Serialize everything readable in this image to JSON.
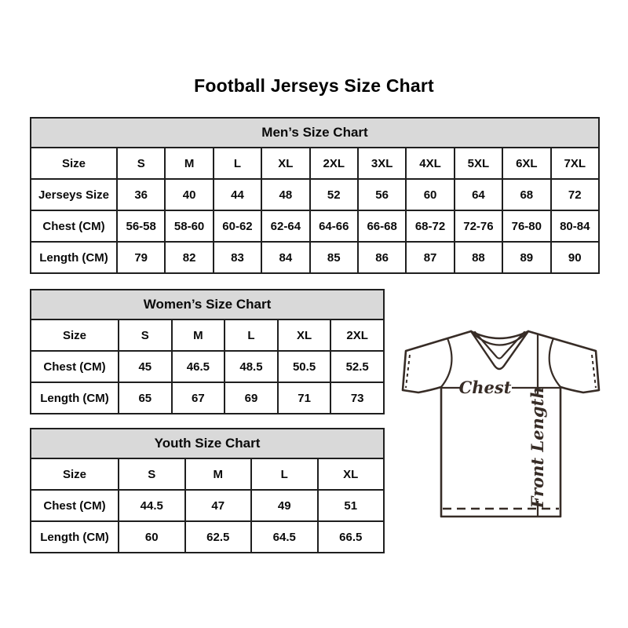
{
  "page_title": "Football Jerseys Size Chart",
  "colors": {
    "header_bg": "#d9d9d9",
    "border": "#1f1f1f",
    "text": "#0a0a0a",
    "diagram_stroke": "#372c26"
  },
  "diagram": {
    "chest_label": "Chest",
    "front_length_label": "Front Length"
  },
  "chart_data": [
    {
      "type": "table",
      "name": "men",
      "title": "Men’s Size Chart",
      "rows": [
        {
          "label": "Size",
          "header": true,
          "values": [
            "S",
            "M",
            "L",
            "XL",
            "2XL",
            "3XL",
            "4XL",
            "5XL",
            "6XL",
            "7XL"
          ]
        },
        {
          "label": "Jerseys Size",
          "values": [
            "36",
            "40",
            "44",
            "48",
            "52",
            "56",
            "60",
            "64",
            "68",
            "72"
          ]
        },
        {
          "label": "Chest (CM)",
          "values": [
            "56-58",
            "58-60",
            "60-62",
            "62-64",
            "64-66",
            "66-68",
            "68-72",
            "72-76",
            "76-80",
            "80-84"
          ]
        },
        {
          "label": "Length (CM)",
          "values": [
            "79",
            "82",
            "83",
            "84",
            "85",
            "86",
            "87",
            "88",
            "89",
            "90"
          ]
        }
      ]
    },
    {
      "type": "table",
      "name": "women",
      "title": "Women’s Size Chart",
      "rows": [
        {
          "label": "Size",
          "header": true,
          "values": [
            "S",
            "M",
            "L",
            "XL",
            "2XL"
          ]
        },
        {
          "label": "Chest (CM)",
          "values": [
            "45",
            "46.5",
            "48.5",
            "50.5",
            "52.5"
          ]
        },
        {
          "label": "Length (CM)",
          "values": [
            "65",
            "67",
            "69",
            "71",
            "73"
          ]
        }
      ]
    },
    {
      "type": "table",
      "name": "youth",
      "title": "Youth Size Chart",
      "rows": [
        {
          "label": "Size",
          "header": true,
          "values": [
            "S",
            "M",
            "L",
            "XL"
          ]
        },
        {
          "label": "Chest (CM)",
          "values": [
            "44.5",
            "47",
            "49",
            "51"
          ]
        },
        {
          "label": "Length (CM)",
          "values": [
            "60",
            "62.5",
            "64.5",
            "66.5"
          ]
        }
      ]
    }
  ]
}
